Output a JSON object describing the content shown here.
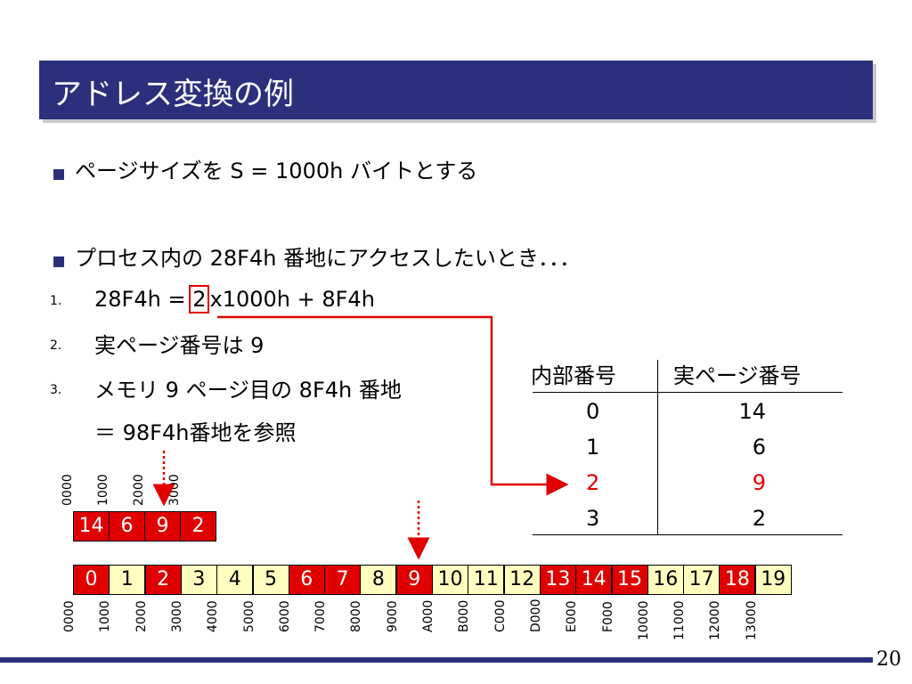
{
  "title": "アドレス変換の例",
  "bullets": [
    "ページサイズを S = 1000h バイトとする",
    "プロセス内の 28F4h 番地にアクセスしたいとき．．．"
  ],
  "steps": [
    {
      "num": "1.",
      "text_a": "28F4h = ",
      "text_hl": "2",
      "text_b": "x1000h + 8F4h"
    },
    {
      "num": "2.",
      "text": "実ページ番号は 9"
    },
    {
      "num": "3.",
      "text": "メモリ 9 ページ目の 8F4h 番地"
    }
  ],
  "step3_cont": "＝ 98F4h番地を参照",
  "page_table": {
    "headers": [
      "内部番号",
      "実ページ番号"
    ],
    "rows": [
      [
        "0",
        "14"
      ],
      [
        "1",
        "6"
      ],
      [
        "2",
        "9"
      ],
      [
        "3",
        "2"
      ]
    ],
    "highlight_row": 2
  },
  "small_table": {
    "values": [
      "14",
      "6",
      "9",
      "2"
    ],
    "addresses": [
      "0000",
      "1000",
      "2000",
      "3000"
    ]
  },
  "memory": {
    "cells": [
      "0",
      "1",
      "2",
      "3",
      "4",
      "5",
      "6",
      "7",
      "8",
      "9",
      "10",
      "11",
      "12",
      "13",
      "14",
      "15",
      "16",
      "17",
      "18",
      "19"
    ],
    "used": [
      true,
      false,
      true,
      false,
      false,
      false,
      true,
      true,
      false,
      true,
      false,
      false,
      false,
      true,
      true,
      true,
      false,
      false,
      true,
      false
    ],
    "addresses": [
      "0000",
      "1000",
      "2000",
      "3000",
      "4000",
      "5000",
      "6000",
      "7000",
      "8000",
      "9000",
      "A000",
      "B000",
      "C000",
      "D000",
      "E000",
      "F000",
      "10000",
      "11000",
      "12000",
      "13000"
    ]
  },
  "colors": {
    "title_bg": "#2b2f7c",
    "used": "#e00000",
    "free": "#ffffc0",
    "arrow": "#e00000"
  },
  "page_number": "20"
}
